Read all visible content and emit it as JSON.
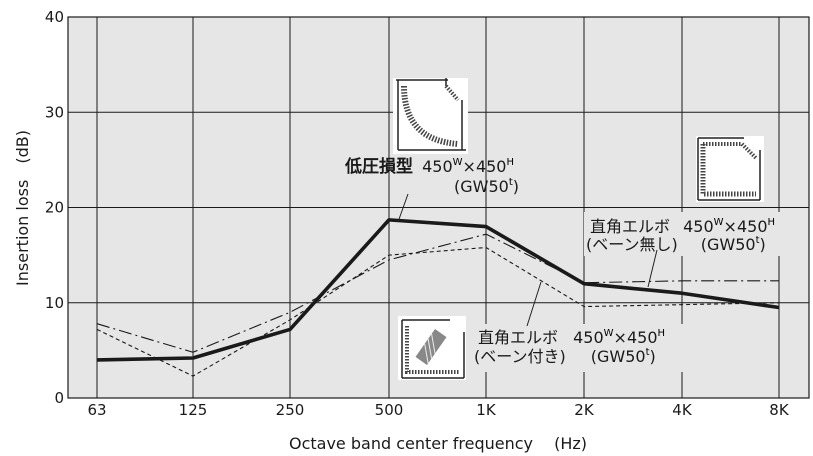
{
  "chart_data": {
    "type": "line",
    "categories": [
      "63",
      "125",
      "250",
      "500",
      "1K",
      "2K",
      "4K",
      "8K"
    ],
    "xlabel": "Octave band center frequency　 (Hz)",
    "ylabel": "Insertion loss　(dB)",
    "ylim": [
      0,
      40
    ],
    "yticks": [
      0,
      10,
      20,
      30,
      40
    ],
    "grid": true,
    "background": "#e6e6e6",
    "series": [
      {
        "name": "低圧損型 450W×450H (GW50t)",
        "style": "solid-thick",
        "color": "#1a1a1a",
        "values": [
          4.0,
          4.2,
          7.2,
          18.7,
          18.0,
          12.0,
          11.0,
          9.5
        ]
      },
      {
        "name": "直角エルボ (ベーン無し) 450W×450H (GW50t)",
        "style": "dash-dot",
        "color": "#1a1a1a",
        "values": [
          7.8,
          4.8,
          9.0,
          14.5,
          17.2,
          12.1,
          12.3,
          12.3
        ]
      },
      {
        "name": "直角エルボ (ベーン付き) 450W×450H (GW50t)",
        "style": "dashed",
        "color": "#1a1a1a",
        "values": [
          7.2,
          2.3,
          8.2,
          15.0,
          15.8,
          9.6,
          9.8,
          10.0
        ]
      }
    ],
    "annotations": {
      "low": {
        "name": "低圧損型",
        "size_w": "450",
        "w": "W",
        "x": "×",
        "size_h": "450",
        "h": "H",
        "gw_open": "(GW50",
        "t": "t",
        "gw_close": ")"
      },
      "novane": {
        "name": "直角エルボ",
        "sub": "(ベーン無し)",
        "size_w": "450",
        "w": "W",
        "x": "×",
        "size_h": "450",
        "h": "H",
        "gw_open": "(GW50",
        "t": "t",
        "gw_close": ")"
      },
      "vane": {
        "name": "直角エルボ",
        "sub": "(ベーン付き)",
        "size_w": "450",
        "w": "W",
        "x": "×",
        "size_h": "450",
        "h": "H",
        "gw_open": "(GW50",
        "t": "t",
        "gw_close": ")"
      }
    }
  }
}
